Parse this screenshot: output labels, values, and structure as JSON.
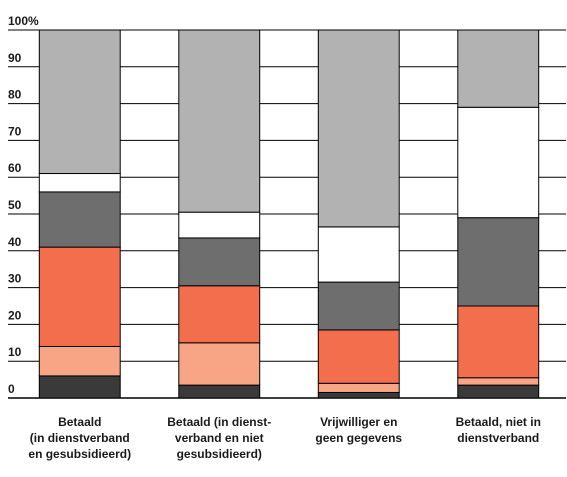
{
  "chart_data": {
    "type": "bar",
    "stacked": true,
    "grid": true,
    "legend": "none",
    "ylim": [
      0,
      100
    ],
    "y_tick_labels": [
      "0",
      "10",
      "20",
      "30",
      "40",
      "50",
      "60",
      "70",
      "80",
      "90",
      "100%"
    ],
    "categories": [
      [
        "Betaald",
        "(in dienstverband",
        "en gesubsidieerd)"
      ],
      [
        "Betaald (in dienst-",
        "verband en niet",
        "gesubsidieerd)"
      ],
      [
        "Vrijwilliger en",
        "geen gegevens"
      ],
      [
        "Betaald, niet in",
        "dienstverband"
      ]
    ],
    "series": [
      {
        "color": "#3a3a3a",
        "values": [
          6,
          3.5,
          1.5,
          3.5
        ]
      },
      {
        "color": "#f7a585",
        "values": [
          8,
          11.5,
          2.5,
          2
        ]
      },
      {
        "color": "#f26e4c",
        "values": [
          27,
          15.5,
          14.5,
          19.5
        ]
      },
      {
        "color": "#6e6e6e",
        "values": [
          15,
          13,
          13,
          24
        ]
      },
      {
        "color": "#ffffff",
        "values": [
          5,
          7,
          15,
          30
        ]
      },
      {
        "color": "#b2b2b2",
        "values": [
          39,
          49.5,
          53.5,
          21
        ]
      }
    ]
  }
}
